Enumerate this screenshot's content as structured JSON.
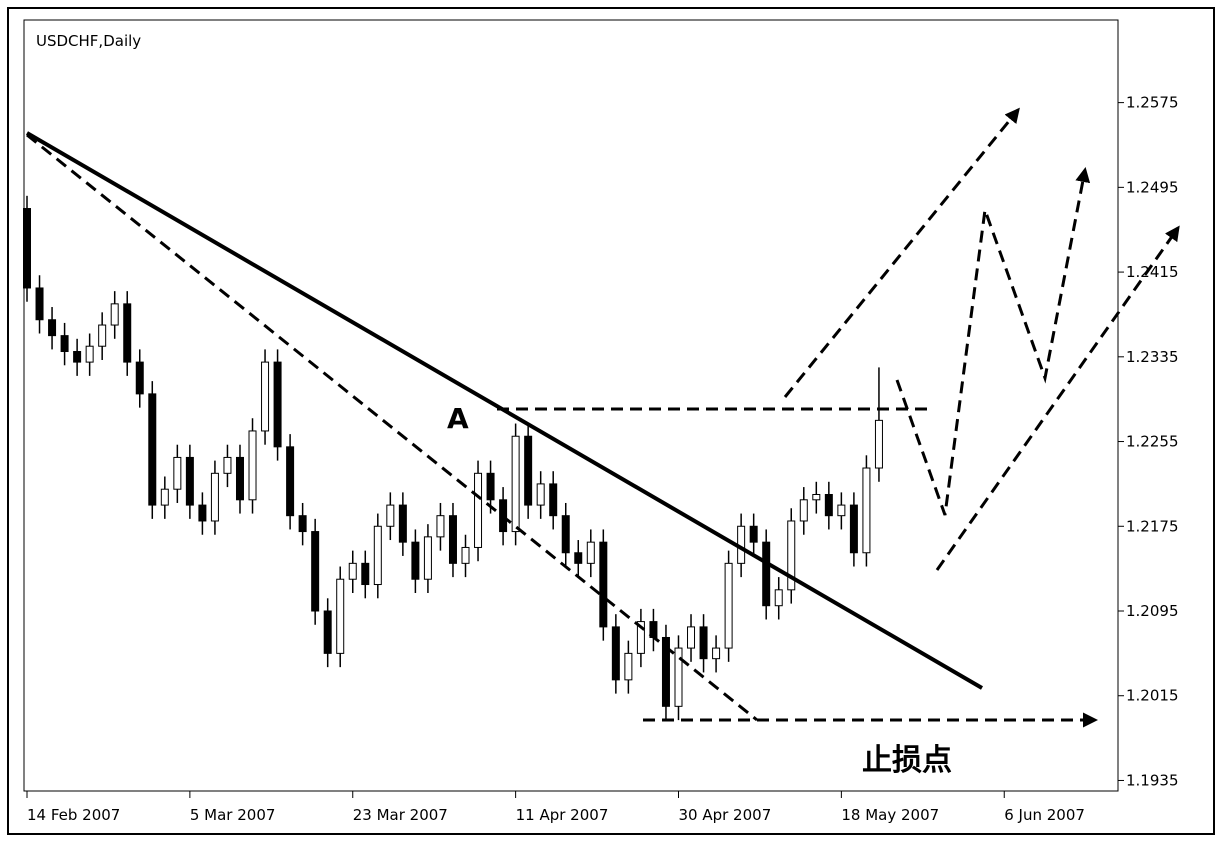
{
  "chart_data": {
    "type": "candlestick",
    "title": "USDCHF,Daily",
    "annotations": [
      "A",
      "止损点"
    ],
    "up_color": "#ffffff",
    "down_color": "#000000",
    "edge_color": "#000000",
    "xlim": [
      0,
      87
    ],
    "xticks": [
      {
        "value": 0,
        "label": "14 Feb 2007"
      },
      {
        "value": 13,
        "label": "5 Mar 2007"
      },
      {
        "value": 26,
        "label": "23 Mar 2007"
      },
      {
        "value": 39,
        "label": "11 Apr 2007"
      },
      {
        "value": 52,
        "label": "30 Apr 2007"
      },
      {
        "value": 65,
        "label": "18 May 2007"
      },
      {
        "value": 78,
        "label": "6 Jun 2007"
      }
    ],
    "ylim": [
      1.1926,
      1.2653
    ],
    "yticks": [
      1.2575,
      1.2495,
      1.2415,
      1.2335,
      1.2255,
      1.2175,
      1.2095,
      1.2015,
      1.1935
    ],
    "open": [
      1.2475,
      1.24,
      1.237,
      1.2355,
      1.234,
      1.233,
      1.2345,
      1.2365,
      1.2385,
      1.233,
      1.23,
      1.2195,
      1.221,
      1.224,
      1.2195,
      1.218,
      1.2225,
      1.224,
      1.22,
      1.2265,
      1.233,
      1.225,
      1.2185,
      1.217,
      1.2095,
      1.2055,
      1.2125,
      1.214,
      1.212,
      1.2175,
      1.2195,
      1.216,
      1.2125,
      1.2165,
      1.2185,
      1.214,
      1.2155,
      1.2225,
      1.22,
      1.217,
      1.226,
      1.2195,
      1.2215,
      1.2185,
      1.215,
      1.214,
      1.216,
      1.208,
      1.203,
      1.2055,
      1.2085,
      1.207,
      1.2005,
      1.206,
      1.208,
      1.205,
      1.206,
      1.214,
      1.2175,
      1.216,
      1.21,
      1.2115,
      1.218,
      1.22,
      1.2205,
      1.2185,
      1.2195,
      1.215,
      1.223
    ],
    "high": [
      1.2487,
      1.2412,
      1.2382,
      1.2367,
      1.2352,
      1.2357,
      1.2377,
      1.2397,
      1.2397,
      1.2342,
      1.2312,
      1.2222,
      1.2252,
      1.2252,
      1.2207,
      1.2237,
      1.2252,
      1.2252,
      1.2277,
      1.2342,
      1.2342,
      1.2262,
      1.2197,
      1.2182,
      1.2107,
      1.2137,
      1.2152,
      1.2152,
      1.2187,
      1.2207,
      1.2207,
      1.2172,
      1.2177,
      1.2197,
      1.2197,
      1.2167,
      1.2237,
      1.2237,
      1.2212,
      1.2272,
      1.2272,
      1.2227,
      1.2227,
      1.2197,
      1.2162,
      1.2172,
      1.2172,
      1.2092,
      1.2067,
      1.2097,
      1.2097,
      1.2082,
      1.2072,
      1.2092,
      1.2092,
      1.2072,
      1.2152,
      1.2187,
      1.2187,
      1.2172,
      1.2127,
      1.2192,
      1.2212,
      1.2217,
      1.2217,
      1.2207,
      1.2207,
      1.2242,
      1.2325
    ],
    "low": [
      1.2387,
      1.2357,
      1.2342,
      1.2327,
      1.2317,
      1.2317,
      1.2332,
      1.2352,
      1.2317,
      1.2287,
      1.2182,
      1.2182,
      1.2197,
      1.2182,
      1.2167,
      1.2167,
      1.2212,
      1.2187,
      1.2187,
      1.2252,
      1.2237,
      1.2172,
      1.2157,
      1.2082,
      1.2042,
      1.2042,
      1.2112,
      1.2107,
      1.2107,
      1.2162,
      1.2147,
      1.2112,
      1.2112,
      1.2152,
      1.2127,
      1.2127,
      1.2142,
      1.2187,
      1.2157,
      1.2157,
      1.2182,
      1.2182,
      1.2172,
      1.2137,
      1.2127,
      1.2127,
      1.2067,
      1.2017,
      1.2017,
      1.2042,
      1.2057,
      1.1992,
      1.1992,
      1.2047,
      1.2037,
      1.2037,
      1.2047,
      1.2127,
      1.2147,
      1.2087,
      1.2087,
      1.2102,
      1.2167,
      1.2187,
      1.2172,
      1.2172,
      1.2137,
      1.2137,
      1.2217
    ],
    "close": [
      1.24,
      1.237,
      1.2355,
      1.234,
      1.233,
      1.2345,
      1.2365,
      1.2385,
      1.233,
      1.23,
      1.2195,
      1.221,
      1.224,
      1.2195,
      1.218,
      1.2225,
      1.224,
      1.22,
      1.2265,
      1.233,
      1.225,
      1.2185,
      1.217,
      1.2095,
      1.2055,
      1.2125,
      1.214,
      1.212,
      1.2175,
      1.2195,
      1.216,
      1.2125,
      1.2165,
      1.2185,
      1.214,
      1.2155,
      1.2225,
      1.22,
      1.217,
      1.226,
      1.2195,
      1.2215,
      1.2185,
      1.215,
      1.214,
      1.216,
      1.208,
      1.203,
      1.2055,
      1.2085,
      1.207,
      1.2005,
      1.206,
      1.208,
      1.205,
      1.206,
      1.214,
      1.2175,
      1.216,
      1.21,
      1.2115,
      1.218,
      1.22,
      1.2205,
      1.2185,
      1.2195,
      1.215,
      1.223,
      1.2275
    ]
  }
}
